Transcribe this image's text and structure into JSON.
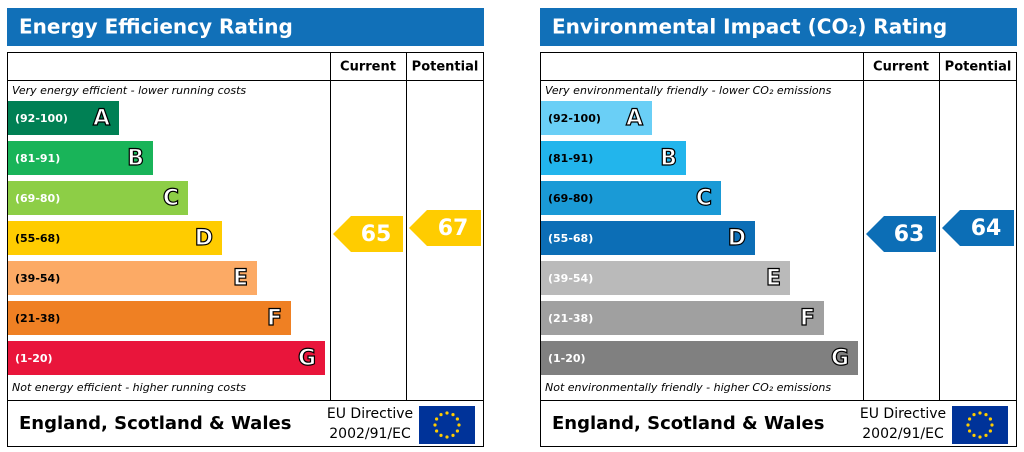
{
  "panels": [
    {
      "title": "Energy Efficiency Rating",
      "columns": [
        "Current",
        "Potential"
      ],
      "top_note": "Very energy efficient - lower running costs",
      "bottom_note": "Not energy efficient - higher running costs",
      "bands": [
        {
          "range": "(92-100)",
          "letter": "A",
          "color": "#008054"
        },
        {
          "range": "(81-91)",
          "letter": "B",
          "color": "#19b459"
        },
        {
          "range": "(69-80)",
          "letter": "C",
          "color": "#8dce46"
        },
        {
          "range": "(55-68)",
          "letter": "D",
          "color": "#ffcc00"
        },
        {
          "range": "(39-54)",
          "letter": "E",
          "color": "#fcaa65"
        },
        {
          "range": "(21-38)",
          "letter": "F",
          "color": "#ef8023"
        },
        {
          "range": "(1-20)",
          "letter": "G",
          "color": "#e9153b"
        }
      ],
      "current": 65,
      "potential": 67,
      "footer": "England, Scotland & Wales",
      "directive": [
        "EU Directive",
        "2002/91/EC"
      ]
    },
    {
      "title": "Environmental Impact (CO₂) Rating",
      "columns": [
        "Current",
        "Potential"
      ],
      "top_note": "Very environmentally friendly - lower CO₂ emissions",
      "bottom_note": "Not environmentally friendly - higher CO₂ emissions",
      "bands": [
        {
          "range": "(92-100)",
          "letter": "A",
          "color": "#6acff6"
        },
        {
          "range": "(81-91)",
          "letter": "B",
          "color": "#22b5ec"
        },
        {
          "range": "(69-80)",
          "letter": "C",
          "color": "#1a9ad6"
        },
        {
          "range": "(55-68)",
          "letter": "D",
          "color": "#0c6eb6"
        },
        {
          "range": "(39-54)",
          "letter": "E",
          "color": "#bababa"
        },
        {
          "range": "(21-38)",
          "letter": "F",
          "color": "#a0a0a0"
        },
        {
          "range": "(1-20)",
          "letter": "G",
          "color": "#808080"
        }
      ],
      "current": 63,
      "potential": 64,
      "footer": "England, Scotland & Wales",
      "directive": [
        "EU Directive",
        "2002/91/EC"
      ]
    }
  ]
}
